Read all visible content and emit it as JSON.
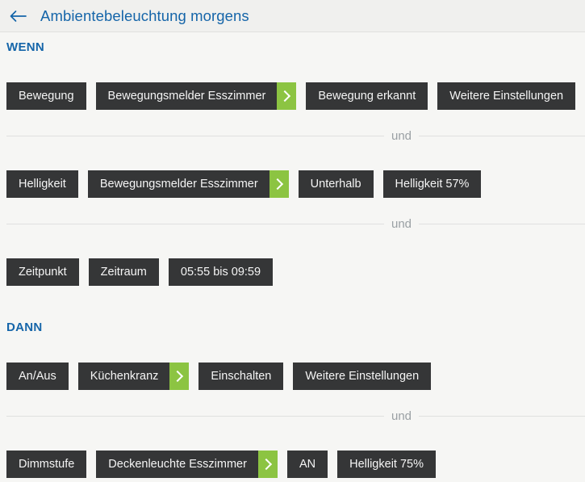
{
  "header": {
    "title": "Ambientebeleuchtung morgens",
    "back_icon": "arrow-left"
  },
  "separator_label": "und",
  "sections": [
    {
      "label": "WENN",
      "rows": [
        {
          "buttons": [
            {
              "label": "Bewegung"
            },
            {
              "label": "Bewegungsmelder Esszimmer",
              "chevron": true
            },
            {
              "label": "Bewegung erkannt"
            },
            {
              "label": "Weitere Einstellungen"
            }
          ]
        },
        {
          "buttons": [
            {
              "label": "Helligkeit"
            },
            {
              "label": "Bewegungsmelder Esszimmer",
              "chevron": true
            },
            {
              "label": "Unterhalb"
            },
            {
              "label": "Helligkeit 57%"
            }
          ]
        },
        {
          "buttons": [
            {
              "label": "Zeitpunkt"
            },
            {
              "label": "Zeitraum"
            },
            {
              "label": "05:55 bis 09:59"
            }
          ]
        }
      ]
    },
    {
      "label": "DANN",
      "rows": [
        {
          "buttons": [
            {
              "label": "An/Aus"
            },
            {
              "label": "Küchenkranz",
              "chevron": true
            },
            {
              "label": "Einschalten"
            },
            {
              "label": "Weitere Einstellungen"
            }
          ]
        },
        {
          "buttons": [
            {
              "label": "Dimmstufe"
            },
            {
              "label": "Deckenleuchte Esszimmer",
              "chevron": true
            },
            {
              "label": "AN"
            },
            {
              "label": "Helligkeit 75%"
            }
          ]
        }
      ]
    }
  ],
  "colors": {
    "accent_blue": "#1565a9",
    "button_dark": "#353637",
    "chevron_green": "#8cc442",
    "header_bg": "#f0f0ee",
    "content_bg": "#f6f6f4",
    "separator_line": "#dfe0df",
    "separator_text": "#9aa0a4"
  }
}
